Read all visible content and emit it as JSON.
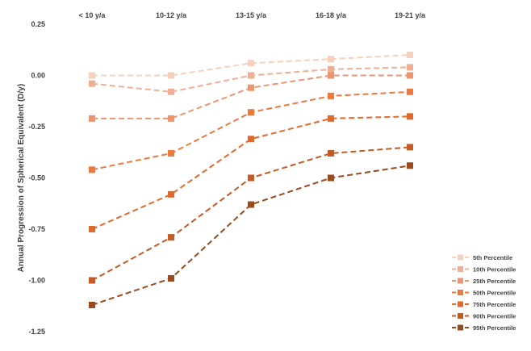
{
  "chart_data": {
    "type": "line",
    "title": "",
    "xlabel": "",
    "ylabel": "Annual Progression of Spherical Equivalent (D/y)",
    "categories": [
      "< 10 y/a",
      "10-12 y/a",
      "13-15 y/a",
      "16-18 y/a",
      "19-21 y/a"
    ],
    "x_axis_position": "top",
    "ylim": [
      -1.25,
      0.25
    ],
    "yticks": [
      0.25,
      0.0,
      -0.25,
      -0.5,
      -0.75,
      -1.0,
      -1.25
    ],
    "ytick_labels": [
      "0.25",
      "0.00",
      "-0.25",
      "-0.50",
      "-0.75",
      "-1.00",
      "-1.25"
    ],
    "grid": false,
    "legend_position": "bottom-right",
    "line_style": "dashed",
    "marker": "square",
    "series": [
      {
        "name": "5th Percentile",
        "color": "#f6cfbd",
        "values": [
          0.0,
          0.0,
          0.06,
          0.08,
          0.1
        ]
      },
      {
        "name": "10th Percentile",
        "color": "#eeaf95",
        "values": [
          -0.04,
          -0.08,
          0.0,
          0.03,
          0.04
        ]
      },
      {
        "name": "25th Percentile",
        "color": "#ec9671",
        "values": [
          -0.21,
          -0.21,
          -0.06,
          0.0,
          0.0
        ]
      },
      {
        "name": "50th Percentile",
        "color": "#ec7a3f",
        "values": [
          -0.46,
          -0.38,
          -0.18,
          -0.1,
          -0.08
        ]
      },
      {
        "name": "75th Percentile",
        "color": "#e06a2b",
        "values": [
          -0.75,
          -0.58,
          -0.31,
          -0.21,
          -0.2
        ]
      },
      {
        "name": "90th Percentile",
        "color": "#c45a24",
        "values": [
          -1.0,
          -0.79,
          -0.5,
          -0.38,
          -0.35
        ]
      },
      {
        "name": "95th Percentile",
        "color": "#9a4a1d",
        "values": [
          -1.12,
          -0.99,
          -0.63,
          -0.5,
          -0.44
        ]
      }
    ]
  }
}
